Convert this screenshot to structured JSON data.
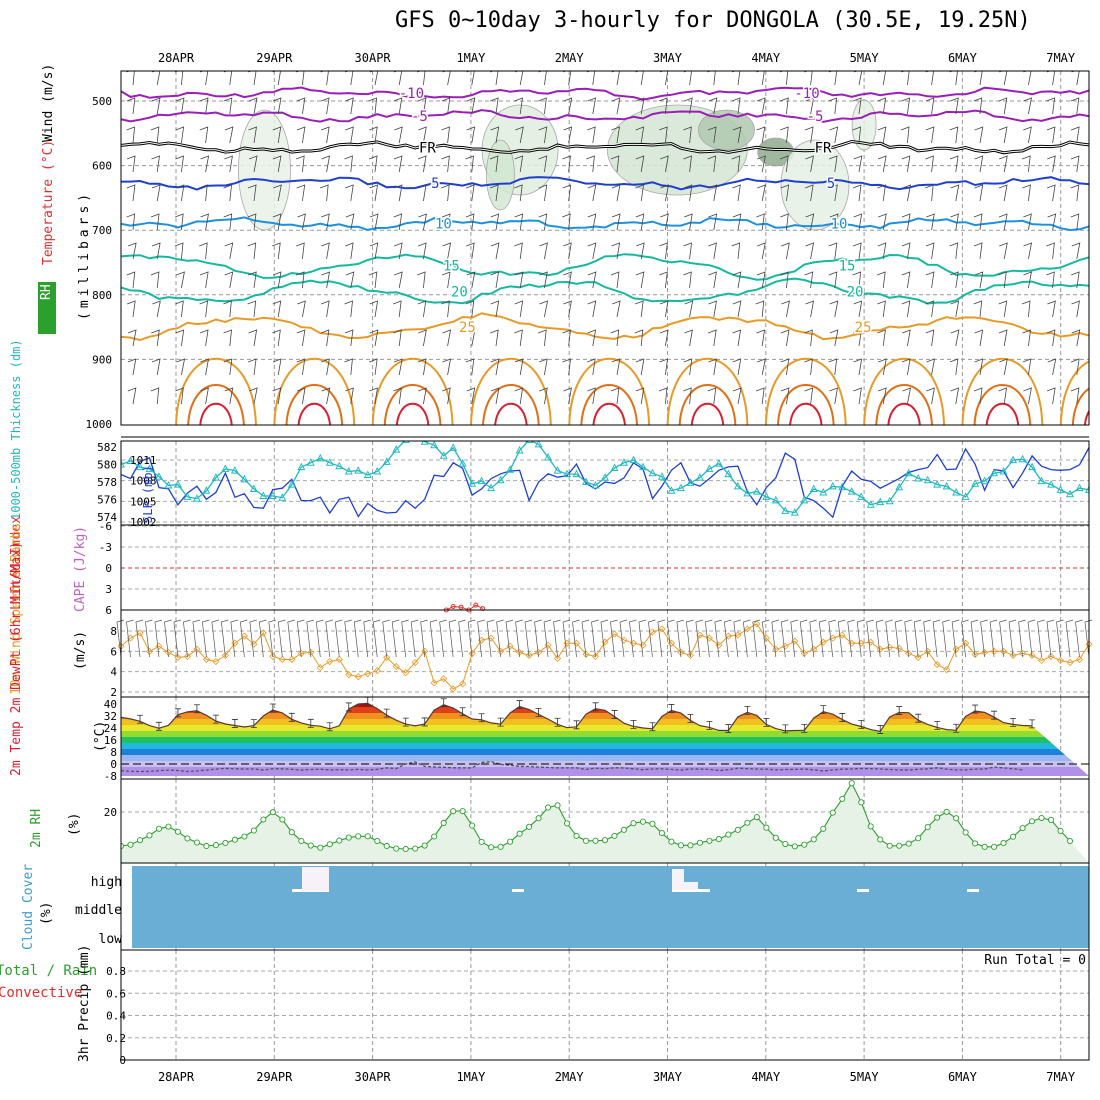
{
  "title": "GFS 0~10day 3-hourly for DONGOLA (30.5E, 19.25N)",
  "date_labels": [
    "28APR",
    "29APR",
    "30APR",
    "1MAY",
    "2MAY",
    "3MAY",
    "4MAY",
    "5MAY",
    "6MAY",
    "7MAY"
  ],
  "colors": {
    "purple": "#9a1fb8",
    "black": "#000000",
    "blue": "#1e3fd0",
    "skyblue": "#1e90e0",
    "teal": "#16b8a0",
    "green": "#24a860",
    "orange": "#e89a28",
    "dark_orange": "#e07018",
    "red": "#d82030",
    "rh_fill": "#d4e6d4",
    "cloud": "#6aaed6",
    "wind": "#e89a28",
    "cape": "#c060c0",
    "lifted": "#e03030"
  },
  "chart_data": [
    {
      "type": "heatmap",
      "name": "upper-air",
      "ylabel_parts": [
        "RH (%)",
        "Temperature (°C)",
        "Wind (m/s)"
      ],
      "ylabel_units": "(millibars)",
      "y_ticks": [
        "500",
        "600",
        "700",
        "800",
        "900",
        "1000"
      ],
      "ylim": [
        1000,
        450
      ],
      "contour_levels": [
        {
          "label": "-10",
          "pressure": 488,
          "color": "purple"
        },
        {
          "label": "-5",
          "pressure": 523,
          "color": "purple"
        },
        {
          "label": "FR",
          "pressure": 572,
          "color": "black"
        },
        {
          "label": "5",
          "pressure": 627,
          "color": "blue"
        },
        {
          "label": "10",
          "pressure": 690,
          "color": "skyblue"
        },
        {
          "label": "15",
          "pressure": 755,
          "color": "teal"
        },
        {
          "label": "20",
          "pressure": 795,
          "color": "teal"
        },
        {
          "label": "25",
          "pressure": 850,
          "color": "orange"
        }
      ],
      "rh_label": "10"
    },
    {
      "type": "line",
      "name": "thickness-slp",
      "ylabel_left": "1000-500mb Thickness (dm)",
      "ylabel_right": "SLP (mb)",
      "left_ticks": [
        "582",
        "580",
        "578",
        "576",
        "574"
      ],
      "right_ticks": [
        "1011",
        "1008",
        "1005",
        "1002"
      ],
      "series": [
        {
          "name": "SLP (mb)",
          "values": [
            1008.9,
            1008.3,
            1010.8,
            1011.3,
            1007.0,
            1006.8,
            1004.5,
            1006.2,
            1007.2,
            1005.3,
            1006.3,
            1009.1,
            1005.6,
            1006.1,
            1004.1,
            1004.0,
            1006.7,
            1006.9,
            1008.2,
            1005.1,
            1005.1,
            1005.6,
            1003.3,
            1005.3,
            1005.6,
            1002.8,
            1004.7,
            1003.7,
            1003.3,
            1003.4,
            1005.1,
            1004.0,
            1005.3,
            1008.8,
            1008.6,
            1010.6,
            1009.8,
            1005.9,
            1006.8,
            1008.3,
            1009.0,
            1009.4,
            1009.5,
            1005.1,
            1007.8,
            1009.0,
            1008.5,
            1008.7,
            1010.4,
            1007.6,
            1006.8,
            1007.8,
            1007.6,
            1008.4,
            1010.6,
            1009.7,
            1005.4,
            1007.2,
            1009.5,
            1010.6,
            1007.7,
            1007.2,
            1008.3,
            1009.5,
            1010.0,
            1010.1,
            1006.4,
            1004.5,
            1007.0,
            1008.4,
            1012.0,
            1011.1,
            1005.6,
            1005.1,
            1004.0,
            1002.7,
            1007.2,
            1009.4,
            1008.2,
            1007.9,
            1006.9,
            1007.6,
            1008.3,
            1009.2,
            1009.6,
            1009.9,
            1011.8,
            1009.6,
            1009.7,
            1012.6,
            1010.4,
            1006.6,
            1009.6,
            1009.4,
            1007.0,
            1009.1,
            1011.6,
            1010.1,
            1009.6,
            1009.5,
            1009.6,
            1010.3,
            1012.8
          ]
        },
        {
          "name": "Thickness (dm)",
          "values": [
            580.0,
            580.4,
            579.7,
            579.5,
            578.6,
            577.6,
            577.7,
            576.3,
            576.1,
            577.0,
            578.5,
            579.5,
            579.3,
            578.3,
            577.2,
            576.4,
            576.4,
            576.2,
            577.7,
            579.7,
            580.2,
            580.7,
            580.2,
            579.8,
            579.2,
            579.3,
            578.8,
            579.2,
            580.3,
            581.7,
            582.8,
            583.4,
            582.6,
            582.2,
            581.0,
            581.9,
            580.1,
            577.8,
            578.1,
            577.3,
            578.2,
            579.4,
            581.6,
            582.8,
            582.3,
            580.8,
            579.3,
            578.9,
            578.9,
            578.0,
            577.6,
            578.5,
            579.6,
            580.2,
            580.5,
            579.7,
            579.0,
            578.6,
            577.0,
            577.3,
            577.9,
            578.5,
            579.5,
            580.1,
            578.9,
            577.5,
            576.7,
            576.9,
            576.3,
            575.9,
            574.7,
            574.5,
            575.9,
            577.2,
            576.8,
            577.5,
            577.4,
            576.9,
            576.3,
            575.4,
            575.7,
            575.8,
            577.4,
            579.0,
            578.4,
            578.2,
            577.7,
            577.5,
            576.8,
            576.3,
            577.8,
            578.1,
            579.0,
            579.2,
            580.5,
            580.6,
            579.7,
            578.1,
            577.7,
            577.1,
            576.6,
            577.3,
            577.1
          ]
        }
      ]
    },
    {
      "type": "line",
      "name": "lifted-index-cape",
      "ylabel_left": "Lifted Index",
      "ylabel_right": "CAPE (J/kg)",
      "y_ticks": [
        "-6",
        "-3",
        "0",
        "3",
        "6"
      ],
      "series": [
        {
          "name": "Lifted Index",
          "x_days": [
            1.75,
            1.82,
            1.9,
            1.98,
            2.05,
            2.12
          ],
          "values": [
            6.0,
            5.5,
            5.6,
            6.0,
            5.3,
            5.8
          ]
        }
      ]
    },
    {
      "type": "line",
      "name": "10m-wind",
      "ylabel": "10m Wind Speed & Barbs",
      "units": "(m/s)",
      "y_ticks": [
        "8",
        "6",
        "4",
        "2"
      ],
      "series": [
        {
          "name": "10m Wind Speed (m/s)",
          "values": [
            6.5,
            7.3,
            7.8,
            6.0,
            6.5,
            5.9,
            5.4,
            5.5,
            6.2,
            5.2,
            5.0,
            5.6,
            6.8,
            7.5,
            6.7,
            7.8,
            5.5,
            5.2,
            5.2,
            5.8,
            5.9,
            4.4,
            5.0,
            5.2,
            3.7,
            3.5,
            3.8,
            4.1,
            5.4,
            4.5,
            3.9,
            4.9,
            6.0,
            2.9,
            3.3,
            2.3,
            2.8,
            5.8,
            7.1,
            7.3,
            6.0,
            6.5,
            5.9,
            5.6,
            5.9,
            6.6,
            5.3,
            6.8,
            6.8,
            5.7,
            5.5,
            6.9,
            7.7,
            7.1,
            6.8,
            6.6,
            7.9,
            8.2,
            6.8,
            5.9,
            5.6,
            7.6,
            7.3,
            6.6,
            7.5,
            7.6,
            8.2,
            8.7,
            7.3,
            6.2,
            6.5,
            7.0,
            5.8,
            6.2,
            6.9,
            7.3,
            7.6,
            6.8,
            6.8,
            6.9,
            6.2,
            6.4,
            6.3,
            5.8,
            5.4,
            6.0,
            4.7,
            4.2,
            6.2,
            6.8,
            5.7,
            5.9,
            6.0,
            6.0,
            5.6,
            5.8,
            5.6,
            5.1,
            5.5,
            5.1,
            4.9,
            5.2,
            6.7
          ]
        }
      ]
    },
    {
      "type": "area",
      "name": "2m-temperature",
      "ylabel": "2m Temp 2m DewPt (6hr Min/Max)",
      "units": "(°C)",
      "y_ticks": [
        "40",
        "32",
        "24",
        "16",
        "8",
        "0",
        "-8"
      ],
      "series": [
        {
          "name": "2m Temp (°C)",
          "values": [
            31.1,
            30.1,
            28.5,
            25.6,
            23.8,
            25.8,
            32.8,
            34.8,
            35.5,
            32.5,
            28.6,
            26.7,
            25.7,
            24.7,
            25.6,
            32.1,
            36.0,
            34.1,
            29.8,
            27.4,
            25.8,
            25.2,
            23.5,
            25.5,
            36.7,
            40.0,
            40.5,
            36.9,
            32.6,
            29.2,
            26.6,
            25.4,
            26.7,
            35.9,
            39.5,
            37.3,
            33.5,
            30.0,
            29.5,
            27.4,
            26.6,
            34.0,
            38.3,
            36.3,
            33.1,
            29.9,
            26.5,
            24.2,
            24.8,
            33.2,
            36.8,
            35.8,
            31.7,
            27.2,
            25.1,
            24.0,
            23.5,
            31.7,
            35.7,
            33.9,
            29.1,
            25.6,
            24.4,
            22.4,
            22.3,
            31.4,
            34.4,
            32.4,
            26.4,
            23.6,
            22.1,
            22.3,
            22.4,
            30.6,
            34.9,
            33.2,
            29.7,
            26.6,
            25.0,
            22.9,
            21.7,
            31.3,
            34.3,
            34.2,
            29.2,
            26.4,
            24.4,
            22.9,
            22.5,
            31.7,
            35.3,
            34.5,
            31.2,
            27.6,
            26.4,
            25.7,
            25.4
          ]
        },
        {
          "name": "2m DewPt (°C)",
          "values": [
            -4.4,
            -4.9,
            -5.0,
            -4.9,
            -4.4,
            -4.1,
            -4.3,
            -5.0,
            -4.6,
            -4.1,
            -3.4,
            -2.9,
            -3.2,
            -3.3,
            -3.3,
            -4.0,
            -3.2,
            -3.2,
            -3.5,
            -4.1,
            -3.7,
            -3.5,
            -3.9,
            -3.8,
            -3.9,
            -3.6,
            -4.0,
            -3.5,
            -2.6,
            -3.1,
            0.0,
            1.4,
            -1.6,
            -2.0,
            -2.2,
            -2.5,
            -2.6,
            -2.6,
            1.0,
            1.7,
            -0.3,
            -0.8,
            -1.6,
            -1.7,
            -2.1,
            -2.3,
            -2.6,
            -2.6,
            -2.6,
            -3.6,
            -2.8,
            -3.2,
            -2.5,
            -2.7,
            -3.2,
            -3.8,
            -3.3,
            -3.2,
            -3.6,
            -4.0,
            -3.3,
            -3.4,
            -3.5,
            -4.4,
            -3.8,
            -2.8,
            -3.1,
            -3.4,
            -3.4,
            -3.9,
            -3.7,
            -3.6,
            -3.3,
            -3.9,
            -4.7,
            -3.9,
            -3.4,
            -3.3,
            -3.0,
            -3.1,
            -3.3,
            -3.7,
            -3.9,
            -4.0,
            -3.5,
            -3.2,
            -2.5,
            -3.4,
            -3.9,
            -3.9,
            -3.4,
            -3.3,
            -2.1,
            -2.6,
            -3.2,
            -3.9
          ]
        }
      ]
    },
    {
      "type": "area",
      "name": "2m-rh",
      "ylabel": "2m RH",
      "units": "(%)",
      "y_ticks": [
        "20"
      ],
      "series": [
        {
          "name": "2m RH (%)",
          "values": [
            4.2,
            4.8,
            6.9,
            9.1,
            12.2,
            13.2,
            10.8,
            7.7,
            5.8,
            4.2,
            4.6,
            5.6,
            7.1,
            8.6,
            11.4,
            16.5,
            19.9,
            16.5,
            10.6,
            6.5,
            4.4,
            3.4,
            5.0,
            6.7,
            8.1,
            8.7,
            8.7,
            6.5,
            4.2,
            3.0,
            2.8,
            3.0,
            4.4,
            8.6,
            14.9,
            20.4,
            20.4,
            13.7,
            6.1,
            3.6,
            3.8,
            6.2,
            9.9,
            13.1,
            17.1,
            22.1,
            23.1,
            14.7,
            8.9,
            6.6,
            6.6,
            6.9,
            8.9,
            11.7,
            14.8,
            15.5,
            14.5,
            10.2,
            6.2,
            4.5,
            4.5,
            5.7,
            6.6,
            7.4,
            9.5,
            11.7,
            15.0,
            17.6,
            12.7,
            8.0,
            5.1,
            4.0,
            4.8,
            7.3,
            12.2,
            19.7,
            26.1,
            33.4,
            24.5,
            13.3,
            7.2,
            4.3,
            4.3,
            5.3,
            7.8,
            13.0,
            17.4,
            20.1,
            17.1,
            10.5,
            5.4,
            3.8,
            3.8,
            5.6,
            8.5,
            12.5,
            15.7,
            17.2,
            16.3,
            11.2,
            6.5
          ]
        }
      ]
    },
    {
      "type": "heatmap",
      "name": "cloud-cover",
      "ylabel": "Cloud Cover",
      "units": "(%)",
      "rows": [
        "high",
        "middle",
        "low"
      ]
    },
    {
      "type": "line",
      "name": "precip",
      "ylabel_left": "Total / Rain Convective",
      "ylabel": "3hr Precip (mm)",
      "y_ticks": [
        "0.8",
        "0.6",
        "0.4",
        "0.2",
        "0"
      ],
      "ylim": [
        0,
        1.0
      ],
      "run_total": "Run Total = 0"
    }
  ]
}
